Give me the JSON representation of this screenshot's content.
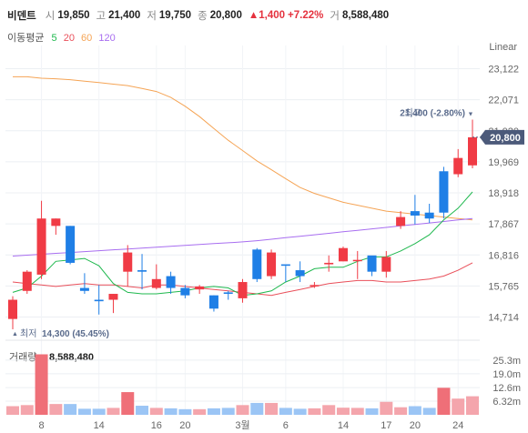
{
  "header": {
    "name": "비덴트",
    "open_label": "시",
    "open": "19,850",
    "high_label": "고",
    "high": "21,400",
    "low_label": "저",
    "low": "19,750",
    "close_label": "종",
    "close": "20,800",
    "change": "▲1,400",
    "change_pct": "+7.22%",
    "volume_label": "거",
    "volume": "8,588,480"
  },
  "moving_average": {
    "label": "이동평균",
    "periods": [
      {
        "text": "5",
        "color": "#1fb84e"
      },
      {
        "text": "20",
        "color": "#e94f5a"
      },
      {
        "text": "60",
        "color": "#f5a455"
      },
      {
        "text": "120",
        "color": "#a86ef0"
      }
    ]
  },
  "colors": {
    "up": "#f03b45",
    "down": "#1f7fe6",
    "vol_up": "#f4a5ac",
    "vol_down": "#9bc5f5",
    "vol_highlight": "#ef6f78"
  },
  "chart_data": {
    "type": "candlestick",
    "scale_label": "Linear",
    "y_ticks": [
      "23,122",
      "22,071",
      "21,020",
      "19,969",
      "18,918",
      "17,867",
      "16,816",
      "15,765",
      "14,714"
    ],
    "ylim": [
      14300,
      23600
    ],
    "x_tick_labels": [
      {
        "index": 2,
        "text": "8"
      },
      {
        "index": 6,
        "text": "14"
      },
      {
        "index": 10,
        "text": "16"
      },
      {
        "index": 12,
        "text": "20"
      },
      {
        "index": 16,
        "text": "3월"
      },
      {
        "index": 19,
        "text": "6"
      },
      {
        "index": 23,
        "text": "14"
      },
      {
        "index": 26,
        "text": "17"
      },
      {
        "index": 28,
        "text": "20"
      },
      {
        "index": 31,
        "text": "24"
      }
    ],
    "candles": [
      {
        "o": 14650,
        "h": 15420,
        "l": 14300,
        "c": 15300
      },
      {
        "o": 15600,
        "h": 16300,
        "l": 15500,
        "c": 16250
      },
      {
        "o": 16150,
        "h": 18650,
        "l": 16000,
        "c": 18050
      },
      {
        "o": 17800,
        "h": 18050,
        "l": 17500,
        "c": 18050
      },
      {
        "o": 17800,
        "h": 17800,
        "l": 16500,
        "c": 16550
      },
      {
        "o": 15700,
        "h": 16200,
        "l": 15500,
        "c": 15600
      },
      {
        "o": 15300,
        "h": 15800,
        "l": 14800,
        "c": 15250
      },
      {
        "o": 15300,
        "h": 15500,
        "l": 14850,
        "c": 15500
      },
      {
        "o": 16250,
        "h": 17150,
        "l": 15750,
        "c": 16900
      },
      {
        "o": 16300,
        "h": 16850,
        "l": 15650,
        "c": 16250
      },
      {
        "o": 15700,
        "h": 16500,
        "l": 15650,
        "c": 16000
      },
      {
        "o": 16100,
        "h": 16250,
        "l": 15500,
        "c": 15700
      },
      {
        "o": 15700,
        "h": 15800,
        "l": 15350,
        "c": 15450
      },
      {
        "o": 15650,
        "h": 15800,
        "l": 15500,
        "c": 15750
      },
      {
        "o": 15450,
        "h": 15450,
        "l": 14900,
        "c": 15000
      },
      {
        "o": 15550,
        "h": 15600,
        "l": 15300,
        "c": 15500
      },
      {
        "o": 15350,
        "h": 16000,
        "l": 15200,
        "c": 15900
      },
      {
        "o": 17000,
        "h": 17050,
        "l": 15900,
        "c": 16000
      },
      {
        "o": 16100,
        "h": 17000,
        "l": 16000,
        "c": 16900
      },
      {
        "o": 16500,
        "h": 16450,
        "l": 15900,
        "c": 16450
      },
      {
        "o": 16300,
        "h": 16600,
        "l": 15900,
        "c": 16100
      },
      {
        "o": 15800,
        "h": 15900,
        "l": 15700,
        "c": 15800
      },
      {
        "o": 16500,
        "h": 16800,
        "l": 16250,
        "c": 16550
      },
      {
        "o": 16600,
        "h": 17100,
        "l": 16600,
        "c": 17050
      },
      {
        "o": 16650,
        "h": 16950,
        "l": 16000,
        "c": 16650
      },
      {
        "o": 16800,
        "h": 16750,
        "l": 16100,
        "c": 16250
      },
      {
        "o": 16250,
        "h": 16950,
        "l": 16050,
        "c": 16750
      },
      {
        "o": 17800,
        "h": 18300,
        "l": 17700,
        "c": 18100
      },
      {
        "o": 18300,
        "h": 18850,
        "l": 17850,
        "c": 18150
      },
      {
        "o": 18250,
        "h": 18550,
        "l": 17900,
        "c": 18050
      },
      {
        "o": 19650,
        "h": 19800,
        "l": 18050,
        "c": 18250
      },
      {
        "o": 19550,
        "h": 20400,
        "l": 19450,
        "c": 20100
      },
      {
        "o": 19850,
        "h": 21400,
        "l": 19750,
        "c": 20800
      }
    ],
    "ma5": [
      15550,
      15700,
      16100,
      16600,
      16650,
      16700,
      16450,
      15850,
      15550,
      15500,
      15500,
      15550,
      15600,
      15700,
      15750,
      15700,
      15450,
      15500,
      15600,
      15900,
      16100,
      16350,
      16400,
      16400,
      16600,
      16750,
      16750,
      16950,
      17200,
      17500,
      18000,
      18400,
      18950
    ],
    "ma20": [
      15900,
      15850,
      15800,
      15750,
      15800,
      15850,
      15800,
      15800,
      15750,
      15700,
      15800,
      15800,
      15750,
      15700,
      15650,
      15600,
      15550,
      15500,
      15450,
      15550,
      15650,
      15750,
      15850,
      15900,
      15950,
      15950,
      15900,
      15900,
      15950,
      16000,
      16100,
      16300,
      16550
    ],
    "ma60": [
      22850,
      22850,
      22800,
      22780,
      22750,
      22700,
      22650,
      22600,
      22550,
      22450,
      22350,
      22150,
      21850,
      21500,
      21100,
      20700,
      20350,
      20000,
      19700,
      19400,
      19100,
      18900,
      18750,
      18600,
      18500,
      18400,
      18300,
      18250,
      18200,
      18150,
      18100,
      18050,
      18000
    ],
    "ma120": [
      16780,
      16810,
      16840,
      16870,
      16900,
      16930,
      16960,
      16990,
      17020,
      17050,
      17080,
      17110,
      17140,
      17170,
      17200,
      17230,
      17260,
      17300,
      17350,
      17400,
      17450,
      17500,
      17550,
      17600,
      17650,
      17700,
      17750,
      17800,
      17850,
      17900,
      17950,
      18000,
      18050
    ],
    "volume": {
      "label": "거래량",
      "value": "8,588,480",
      "ticks": [
        "25.3m",
        "19.0m",
        "12.6m",
        "6.32m"
      ],
      "max": 32000000,
      "values": [
        4000000,
        4500000,
        28000000,
        5000000,
        5000000,
        2800000,
        2800000,
        3200000,
        10500000,
        4200000,
        3200000,
        3000000,
        2600000,
        2600000,
        3000000,
        3200000,
        4500000,
        5500000,
        5500000,
        3200000,
        2800000,
        3000000,
        4500000,
        3300000,
        3200000,
        3000000,
        6000000,
        3500000,
        4000000,
        3200000,
        12500000,
        7500000,
        8588480
      ]
    },
    "annotations": {
      "high_label": "최고",
      "high_value": "21,400 (-2.80%)",
      "low_label": "최저",
      "low_value": "14,300 (45.45%)",
      "last_price": "20,800"
    }
  }
}
